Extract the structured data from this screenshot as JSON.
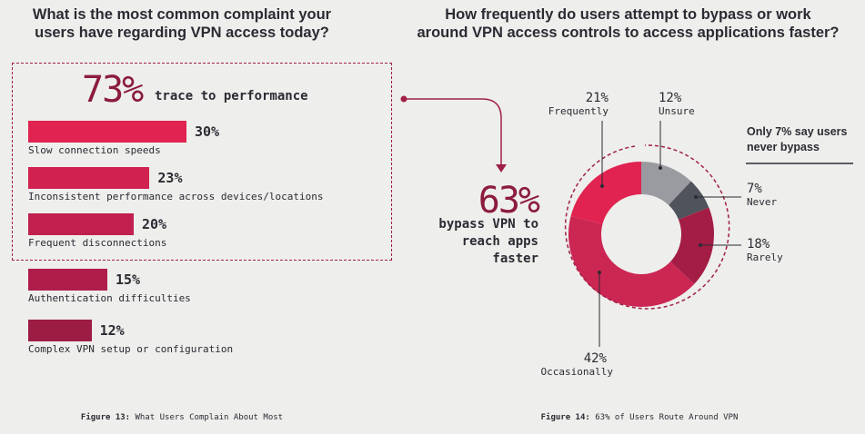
{
  "left": {
    "title_line1": "What is the most common complaint your",
    "title_line2": "users have regarding VPN access today?",
    "highlight_value": "73%",
    "highlight_text": "trace to performance",
    "caption_prefix": "Figure 13:",
    "caption_text": "What Users Complain About Most"
  },
  "right": {
    "title_line1": "How frequently do users attempt to bypass or work",
    "title_line2": "around VPN access controls to access applications faster?",
    "highlight_value": "63%",
    "bypass_line1": "bypass VPN to",
    "bypass_line2": "reach apps",
    "bypass_line3": "faster",
    "note_line1": "Only 7% say users",
    "note_line2": "never bypass",
    "caption_prefix": "Figure 14:",
    "caption_text": "63% of Users Route Around VPN"
  },
  "chart_data": [
    {
      "type": "bar",
      "orientation": "horizontal",
      "title": "What is the most common complaint your users have regarding VPN access today?",
      "categories": [
        "Slow connection speeds",
        "Inconsistent performance across devices/locations",
        "Frequent disconnections",
        "Authentication difficulties",
        "Complex VPN setup or configuration"
      ],
      "values": [
        30,
        23,
        20,
        15,
        12
      ],
      "labels": [
        "30%",
        "23%",
        "20%",
        "15%",
        "12%"
      ],
      "colors": [
        "#e02350",
        "#d12150",
        "#c11f4e",
        "#b01d4a",
        "#9c1c44"
      ],
      "annotation": "73% trace to performance"
    },
    {
      "type": "pie",
      "style": "donut",
      "title": "How frequently do users attempt to bypass or work around VPN access controls to access applications faster?",
      "categories": [
        "Unsure",
        "Never",
        "Rarely",
        "Occasionally",
        "Frequently"
      ],
      "values": [
        12,
        7,
        18,
        42,
        21
      ],
      "labels": [
        "12%",
        "7%",
        "18%",
        "42%",
        "21%"
      ],
      "colors": [
        "#9a9ba0",
        "#4f545c",
        "#a31d45",
        "#cc2653",
        "#e02350"
      ],
      "annotation": "63% bypass VPN to reach apps faster"
    }
  ]
}
